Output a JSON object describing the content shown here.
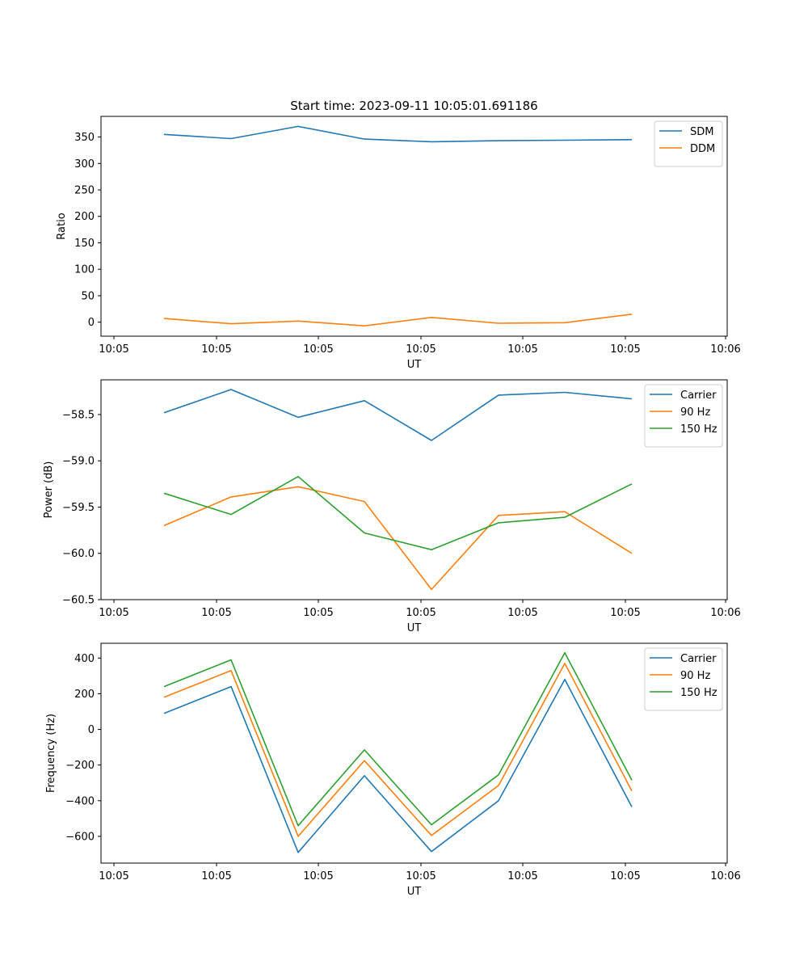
{
  "chart_data": [
    {
      "type": "line",
      "title": "Start time: 2023-09-11 10:05:01.691186",
      "xlabel": "UT",
      "ylabel": "Ratio",
      "x_tick_labels": [
        "10:05",
        "10:05",
        "10:05",
        "10:05",
        "10:05",
        "10:05",
        "10:05"
      ],
      "x_end_tick_label": "10:06",
      "y_ticks": [
        0,
        50,
        100,
        150,
        200,
        250,
        300,
        350
      ],
      "y_tick_labels": [
        "0",
        "50",
        "100",
        "150",
        "200",
        "250",
        "300",
        "350"
      ],
      "ylim": [
        -26.5,
        389
      ],
      "legend": "top-right",
      "series": [
        {
          "name": "SDM",
          "color": "#1f77b4",
          "values": [
            355,
            347,
            370,
            346,
            341,
            343,
            344,
            345
          ]
        },
        {
          "name": "DDM",
          "color": "#ff7f0e",
          "values": [
            7,
            -3,
            2,
            -7,
            9,
            -2,
            -1,
            15
          ]
        }
      ]
    },
    {
      "type": "line",
      "title": "",
      "xlabel": "UT",
      "ylabel": "Power (dB)",
      "x_tick_labels": [
        "10:05",
        "10:05",
        "10:05",
        "10:05",
        "10:05",
        "10:05",
        "10:05"
      ],
      "x_end_tick_label": "10:06",
      "y_ticks": [
        -60.5,
        -60.0,
        -59.5,
        -59.0,
        -58.5
      ],
      "y_tick_labels": [
        "−60.5",
        "−60.0",
        "−59.5",
        "−59.0",
        "−58.5"
      ],
      "ylim": [
        -60.5,
        -58.125
      ],
      "legend": "top-right",
      "series": [
        {
          "name": "Carrier",
          "color": "#1f77b4",
          "values": [
            -58.48,
            -58.23,
            -58.53,
            -58.35,
            -58.78,
            -58.29,
            -58.26,
            -58.33
          ]
        },
        {
          "name": "90 Hz",
          "color": "#ff7f0e",
          "values": [
            -59.7,
            -59.39,
            -59.28,
            -59.44,
            -60.39,
            -59.59,
            -59.55,
            -60.0
          ]
        },
        {
          "name": "150 Hz",
          "color": "#2ca02c",
          "values": [
            -59.35,
            -59.58,
            -59.17,
            -59.78,
            -59.96,
            -59.67,
            -59.61,
            -59.25
          ]
        }
      ]
    },
    {
      "type": "line",
      "title": "",
      "xlabel": "UT",
      "ylabel": "Frequency (Hz)",
      "x_tick_labels": [
        "10:05",
        "10:05",
        "10:05",
        "10:05",
        "10:05",
        "10:05",
        "10:05"
      ],
      "x_end_tick_label": "10:06",
      "y_ticks": [
        -600,
        -400,
        -200,
        0,
        200,
        400
      ],
      "y_tick_labels": [
        "−600",
        "−400",
        "−200",
        "0",
        "200",
        "400"
      ],
      "ylim": [
        -750,
        483
      ],
      "legend": "top-right",
      "series": [
        {
          "name": "Carrier",
          "color": "#1f77b4",
          "values": [
            90,
            240,
            -690,
            -260,
            -685,
            -400,
            280,
            -435
          ]
        },
        {
          "name": "90 Hz",
          "color": "#ff7f0e",
          "values": [
            180,
            330,
            -600,
            -175,
            -595,
            -315,
            370,
            -345
          ]
        },
        {
          "name": "150 Hz",
          "color": "#2ca02c",
          "values": [
            240,
            390,
            -540,
            -115,
            -535,
            -255,
            430,
            -285
          ]
        }
      ]
    }
  ]
}
